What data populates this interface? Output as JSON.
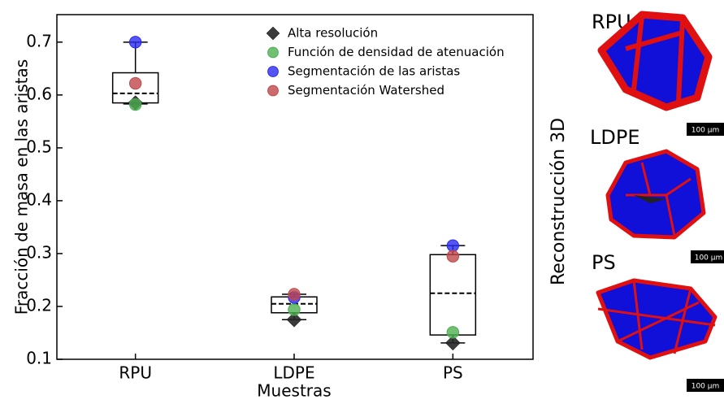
{
  "chart_data": {
    "type": "box",
    "ylabel": "Fracción de masa en las aristas",
    "xlabel": "Muestras",
    "categories": [
      "RPU",
      "LDPE",
      "PS"
    ],
    "ylim": [
      0.1,
      0.752
    ],
    "yticks": [
      0.1,
      0.2,
      0.3,
      0.4,
      0.5,
      0.6,
      0.7
    ],
    "boxes": [
      {
        "whislo": 0.583,
        "q1": 0.585,
        "median": 0.603,
        "q3": 0.642,
        "whishi": 0.7
      },
      {
        "whislo": 0.175,
        "q1": 0.188,
        "median": 0.205,
        "q3": 0.218,
        "whishi": 0.223
      },
      {
        "whislo": 0.131,
        "q1": 0.146,
        "median": 0.225,
        "q3": 0.298,
        "whishi": 0.315
      }
    ],
    "series": [
      {
        "name": "Alta resolución",
        "color": "#262626",
        "marker": "diamond",
        "values": [
          0.585,
          0.175,
          0.131
        ]
      },
      {
        "name": "Función de densidad de atenuación",
        "color": "#4caf50",
        "marker": "circle",
        "values": [
          0.582,
          0.194,
          0.151
        ]
      },
      {
        "name": "Segmentación de las aristas",
        "color": "#2a2af0",
        "marker": "circle",
        "values": [
          0.7,
          0.217,
          0.315
        ]
      },
      {
        "name": "Segmentación Watershed",
        "color": "#c0474a",
        "marker": "circle",
        "values": [
          0.622,
          0.223,
          0.295
        ]
      }
    ]
  },
  "reconstruction": {
    "title": "Reconstrucción 3D",
    "labels": [
      "RPU",
      "LDPE",
      "PS"
    ],
    "scale_label": "100 µm"
  }
}
